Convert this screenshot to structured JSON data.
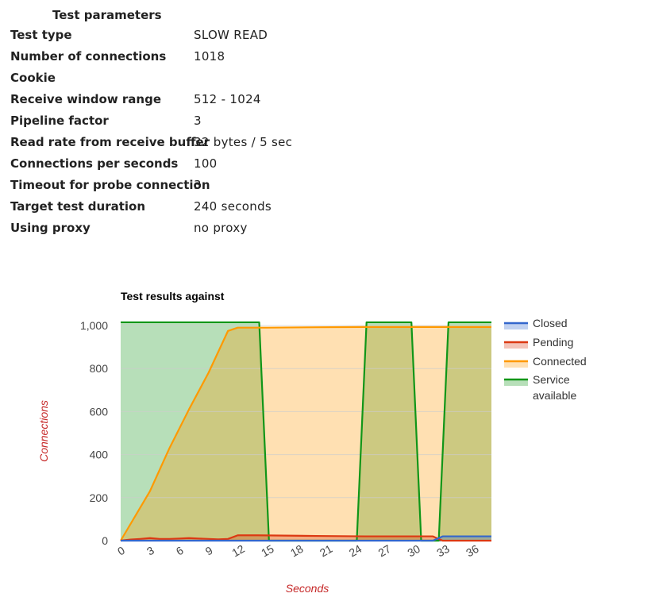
{
  "params": {
    "title": "Test parameters",
    "rows": [
      {
        "name": "Test type",
        "value": "SLOW READ"
      },
      {
        "name": "Number of connections",
        "value": "1018"
      },
      {
        "name": "Cookie",
        "value": ""
      },
      {
        "name": "Receive window range",
        "value": "512 - 1024"
      },
      {
        "name": "Pipeline factor",
        "value": "3"
      },
      {
        "name": "Read rate from receive buffer",
        "value": "32 bytes / 5 sec"
      },
      {
        "name": "Connections per seconds",
        "value": "100"
      },
      {
        "name": "Timeout for probe connection",
        "value": "3"
      },
      {
        "name": "Target test duration",
        "value": "240 seconds"
      },
      {
        "name": "Using proxy",
        "value": "no proxy"
      }
    ]
  },
  "chart_data": {
    "type": "area",
    "title": "Test results against",
    "xlabel": "Seconds",
    "ylabel": "Connections",
    "xlim": [
      0,
      38
    ],
    "ylim": [
      0,
      1000
    ],
    "xticks": [
      "0",
      "3",
      "6",
      "9",
      "12",
      "15",
      "18",
      "21",
      "24",
      "27",
      "30",
      "33",
      "36"
    ],
    "yticks": [
      "0",
      "200",
      "400",
      "600",
      "800",
      "1,000"
    ],
    "grid": true,
    "legend_position": "right",
    "series": [
      {
        "name": "Closed",
        "color": "#3366cc",
        "x": [
          0,
          32,
          33,
          38
        ],
        "y": [
          0,
          0,
          20,
          20
        ]
      },
      {
        "name": "Pending",
        "color": "#dc3912",
        "x": [
          0,
          1,
          2,
          3,
          4,
          5,
          6,
          7,
          8,
          9,
          10,
          11,
          12,
          14,
          20,
          25,
          30,
          32,
          33,
          38
        ],
        "y": [
          0,
          5,
          8,
          12,
          8,
          8,
          10,
          12,
          10,
          8,
          6,
          8,
          25,
          25,
          22,
          20,
          20,
          20,
          0,
          0
        ]
      },
      {
        "name": "Connected",
        "color": "#ff9900",
        "x": [
          0,
          3,
          5,
          7,
          9,
          11,
          12,
          15,
          20,
          25,
          30,
          35,
          38
        ],
        "y": [
          0,
          230,
          430,
          610,
          780,
          975,
          990,
          990,
          992,
          993,
          993,
          993,
          993
        ]
      },
      {
        "name": "Service\navailable",
        "color": "#109618",
        "x": [
          0,
          14.2,
          15.2,
          24.2,
          25.2,
          29.8,
          30.8,
          32.6,
          33.6,
          38
        ],
        "y": [
          1015,
          1015,
          0,
          0,
          1015,
          1015,
          0,
          0,
          1015,
          1015
        ]
      }
    ]
  }
}
